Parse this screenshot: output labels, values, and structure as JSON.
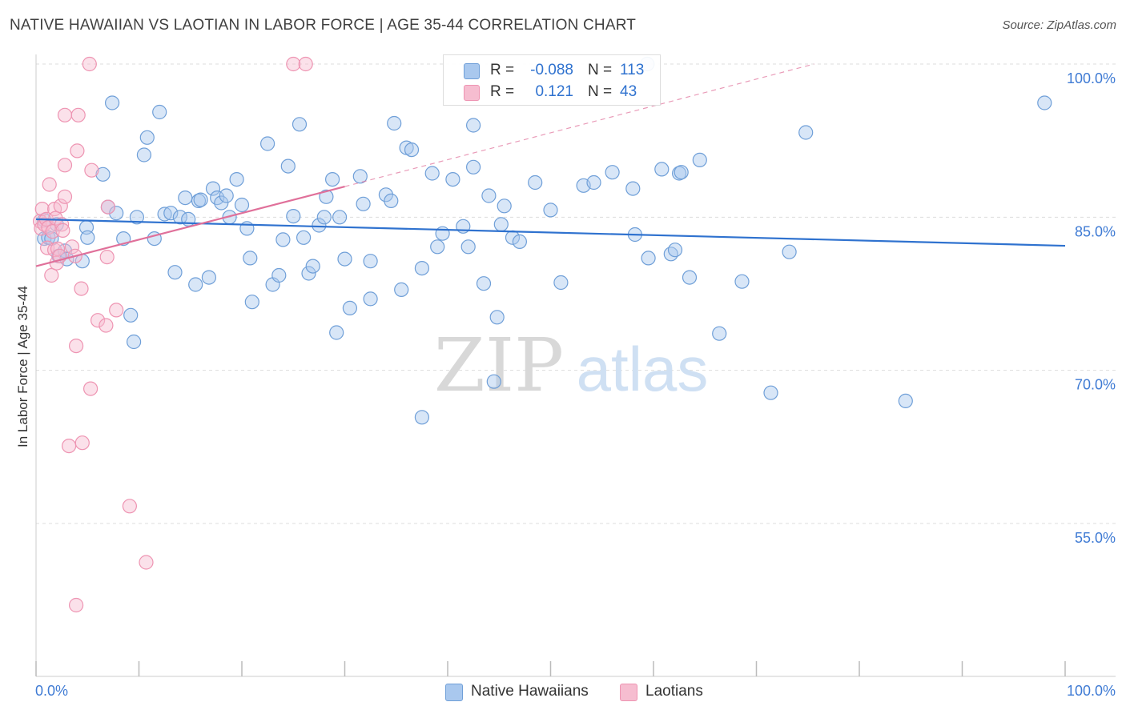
{
  "title": "NATIVE HAWAIIAN VS LAOTIAN IN LABOR FORCE | AGE 35-44 CORRELATION CHART",
  "source": "Source: ZipAtlas.com",
  "watermark": {
    "zip": "ZIP",
    "atlas": "atlas"
  },
  "colors": {
    "blue_fill": "#a9c8ee",
    "blue_stroke": "#6f9fd8",
    "blue_line": "#2f72cf",
    "pink_fill": "#f6bdd0",
    "pink_stroke": "#ee94b2",
    "pink_line": "#e0709a",
    "axis_label": "#3f7bd4",
    "grid": "#dddddd"
  },
  "legend": {
    "rows": [
      {
        "r_label": "R =",
        "r_value": "-0.088",
        "n_label": "N =",
        "n_value": "113",
        "color": "blue"
      },
      {
        "r_label": "R =",
        "r_value": "0.121",
        "n_label": "N =",
        "n_value": "43",
        "color": "pink"
      }
    ]
  },
  "bottom_legend": [
    {
      "label": "Native Hawaiians",
      "color": "blue"
    },
    {
      "label": "Laotians",
      "color": "pink"
    }
  ],
  "chart_data": {
    "type": "scatter",
    "title": "NATIVE HAWAIIAN VS LAOTIAN IN LABOR FORCE | AGE 35-44 CORRELATION CHART",
    "xlabel": "",
    "ylabel": "In Labor Force | Age 35-44",
    "xlim": [
      0,
      100
    ],
    "ylim": [
      40,
      101.5
    ],
    "x_tick_labels": [
      "0.0%",
      "100.0%"
    ],
    "y_ticks": [
      55.0,
      70.0,
      85.0,
      100.0
    ],
    "y_tick_labels": [
      "55.0%",
      "70.0%",
      "85.0%",
      "100.0%"
    ],
    "grid": true,
    "legend_position": "top-center",
    "series": [
      {
        "name": "Native Hawaiians",
        "color": "blue",
        "r": -0.088,
        "n": 113,
        "trend": {
          "x": [
            0,
            100
          ],
          "y": [
            84.8,
            82.2
          ]
        },
        "points": [
          [
            0.8,
            84.7
          ],
          [
            0.8,
            82.9
          ],
          [
            1.2,
            83.0
          ],
          [
            1.5,
            82.9
          ],
          [
            2.0,
            84.3
          ],
          [
            2.2,
            81.2
          ],
          [
            2.8,
            81.7
          ],
          [
            3.0,
            80.9
          ],
          [
            4.5,
            80.7
          ],
          [
            4.9,
            84.0
          ],
          [
            5.0,
            83.0
          ],
          [
            6.5,
            89.2
          ],
          [
            7.0,
            86.0
          ],
          [
            7.4,
            96.2
          ],
          [
            7.8,
            85.4
          ],
          [
            8.5,
            82.9
          ],
          [
            9.2,
            75.4
          ],
          [
            9.5,
            72.8
          ],
          [
            9.8,
            85.0
          ],
          [
            10.5,
            91.1
          ],
          [
            10.8,
            92.8
          ],
          [
            11.5,
            82.9
          ],
          [
            12.0,
            95.3
          ],
          [
            12.5,
            85.3
          ],
          [
            13.1,
            85.4
          ],
          [
            13.5,
            79.6
          ],
          [
            14.0,
            85.0
          ],
          [
            14.5,
            86.9
          ],
          [
            14.8,
            84.8
          ],
          [
            15.5,
            78.4
          ],
          [
            15.8,
            86.6
          ],
          [
            16.0,
            86.7
          ],
          [
            16.8,
            79.1
          ],
          [
            17.2,
            87.8
          ],
          [
            17.6,
            86.9
          ],
          [
            18.0,
            86.4
          ],
          [
            18.5,
            87.1
          ],
          [
            18.8,
            85.0
          ],
          [
            19.5,
            88.7
          ],
          [
            20.0,
            86.2
          ],
          [
            20.5,
            83.9
          ],
          [
            20.8,
            81.0
          ],
          [
            21.0,
            76.7
          ],
          [
            22.5,
            92.2
          ],
          [
            23.0,
            78.4
          ],
          [
            23.6,
            79.3
          ],
          [
            24.0,
            82.8
          ],
          [
            24.5,
            90.0
          ],
          [
            25.0,
            85.1
          ],
          [
            25.6,
            94.1
          ],
          [
            26.0,
            83.0
          ],
          [
            26.5,
            79.5
          ],
          [
            26.9,
            80.2
          ],
          [
            27.5,
            84.2
          ],
          [
            28.0,
            85.0
          ],
          [
            28.2,
            87.0
          ],
          [
            28.8,
            88.7
          ],
          [
            29.2,
            73.7
          ],
          [
            29.5,
            85.0
          ],
          [
            30.0,
            80.9
          ],
          [
            30.5,
            76.1
          ],
          [
            31.5,
            89.0
          ],
          [
            31.8,
            86.3
          ],
          [
            32.5,
            77.0
          ],
          [
            32.5,
            80.7
          ],
          [
            34.0,
            87.2
          ],
          [
            34.5,
            86.6
          ],
          [
            34.8,
            94.2
          ],
          [
            35.5,
            77.9
          ],
          [
            36.0,
            91.8
          ],
          [
            36.5,
            91.6
          ],
          [
            37.5,
            65.4
          ],
          [
            37.5,
            80.0
          ],
          [
            38.5,
            89.3
          ],
          [
            39.0,
            82.1
          ],
          [
            39.5,
            83.4
          ],
          [
            40.5,
            88.7
          ],
          [
            41.5,
            84.1
          ],
          [
            42.0,
            82.1
          ],
          [
            42.5,
            94.0
          ],
          [
            42.5,
            89.9
          ],
          [
            43.5,
            78.5
          ],
          [
            44.0,
            87.1
          ],
          [
            44.5,
            68.9
          ],
          [
            44.8,
            75.2
          ],
          [
            45.2,
            84.3
          ],
          [
            45.5,
            86.1
          ],
          [
            46.3,
            83.0
          ],
          [
            47.0,
            82.6
          ],
          [
            48.5,
            88.4
          ],
          [
            50.0,
            85.7
          ],
          [
            51.0,
            78.6
          ],
          [
            53.2,
            88.1
          ],
          [
            54.2,
            88.4
          ],
          [
            56.0,
            89.4
          ],
          [
            58.0,
            87.8
          ],
          [
            58.2,
            83.3
          ],
          [
            59.5,
            81.0
          ],
          [
            60.8,
            89.7
          ],
          [
            61.7,
            81.4
          ],
          [
            62.1,
            81.8
          ],
          [
            62.5,
            89.3
          ],
          [
            62.7,
            89.4
          ],
          [
            63.5,
            79.1
          ],
          [
            64.5,
            90.6
          ],
          [
            66.4,
            73.6
          ],
          [
            68.6,
            78.7
          ],
          [
            71.4,
            67.8
          ],
          [
            73.2,
            81.6
          ],
          [
            74.8,
            93.3
          ],
          [
            84.5,
            67.0
          ],
          [
            98.0,
            96.2
          ],
          [
            59.4,
            100.0
          ]
        ]
      },
      {
        "name": "Laotians",
        "color": "pink",
        "r": 0.121,
        "n": 43,
        "trend": {
          "x": [
            0,
            30
          ],
          "y": [
            80.2,
            88.0
          ]
        },
        "trend_dashed": {
          "x": [
            30,
            75.6
          ],
          "y": [
            88.0,
            100.0
          ]
        },
        "points": [
          [
            0.4,
            84.6
          ],
          [
            0.5,
            83.9
          ],
          [
            0.6,
            85.8
          ],
          [
            0.8,
            84.3
          ],
          [
            1.0,
            84.8
          ],
          [
            1.1,
            82.0
          ],
          [
            1.2,
            84.0
          ],
          [
            1.3,
            88.2
          ],
          [
            1.5,
            79.3
          ],
          [
            1.6,
            83.6
          ],
          [
            1.8,
            85.8
          ],
          [
            1.8,
            81.8
          ],
          [
            1.9,
            84.9
          ],
          [
            2.0,
            80.5
          ],
          [
            2.1,
            81.9
          ],
          [
            2.3,
            81.2
          ],
          [
            2.4,
            86.1
          ],
          [
            2.5,
            84.3
          ],
          [
            2.6,
            83.7
          ],
          [
            2.8,
            87.0
          ],
          [
            2.8,
            95.0
          ],
          [
            2.8,
            90.1
          ],
          [
            3.2,
            62.6
          ],
          [
            3.5,
            82.1
          ],
          [
            3.8,
            81.2
          ],
          [
            3.9,
            72.4
          ],
          [
            4.0,
            91.5
          ],
          [
            4.1,
            95.0
          ],
          [
            4.4,
            78.0
          ],
          [
            4.5,
            62.9
          ],
          [
            5.2,
            100.0
          ],
          [
            5.3,
            68.2
          ],
          [
            5.4,
            89.6
          ],
          [
            6.0,
            74.9
          ],
          [
            6.8,
            74.4
          ],
          [
            6.9,
            81.1
          ],
          [
            7.0,
            86.0
          ],
          [
            7.8,
            75.9
          ],
          [
            9.1,
            56.7
          ],
          [
            10.7,
            51.2
          ],
          [
            25.0,
            100.0
          ],
          [
            26.2,
            100.0
          ],
          [
            3.9,
            47.0
          ]
        ]
      }
    ]
  }
}
